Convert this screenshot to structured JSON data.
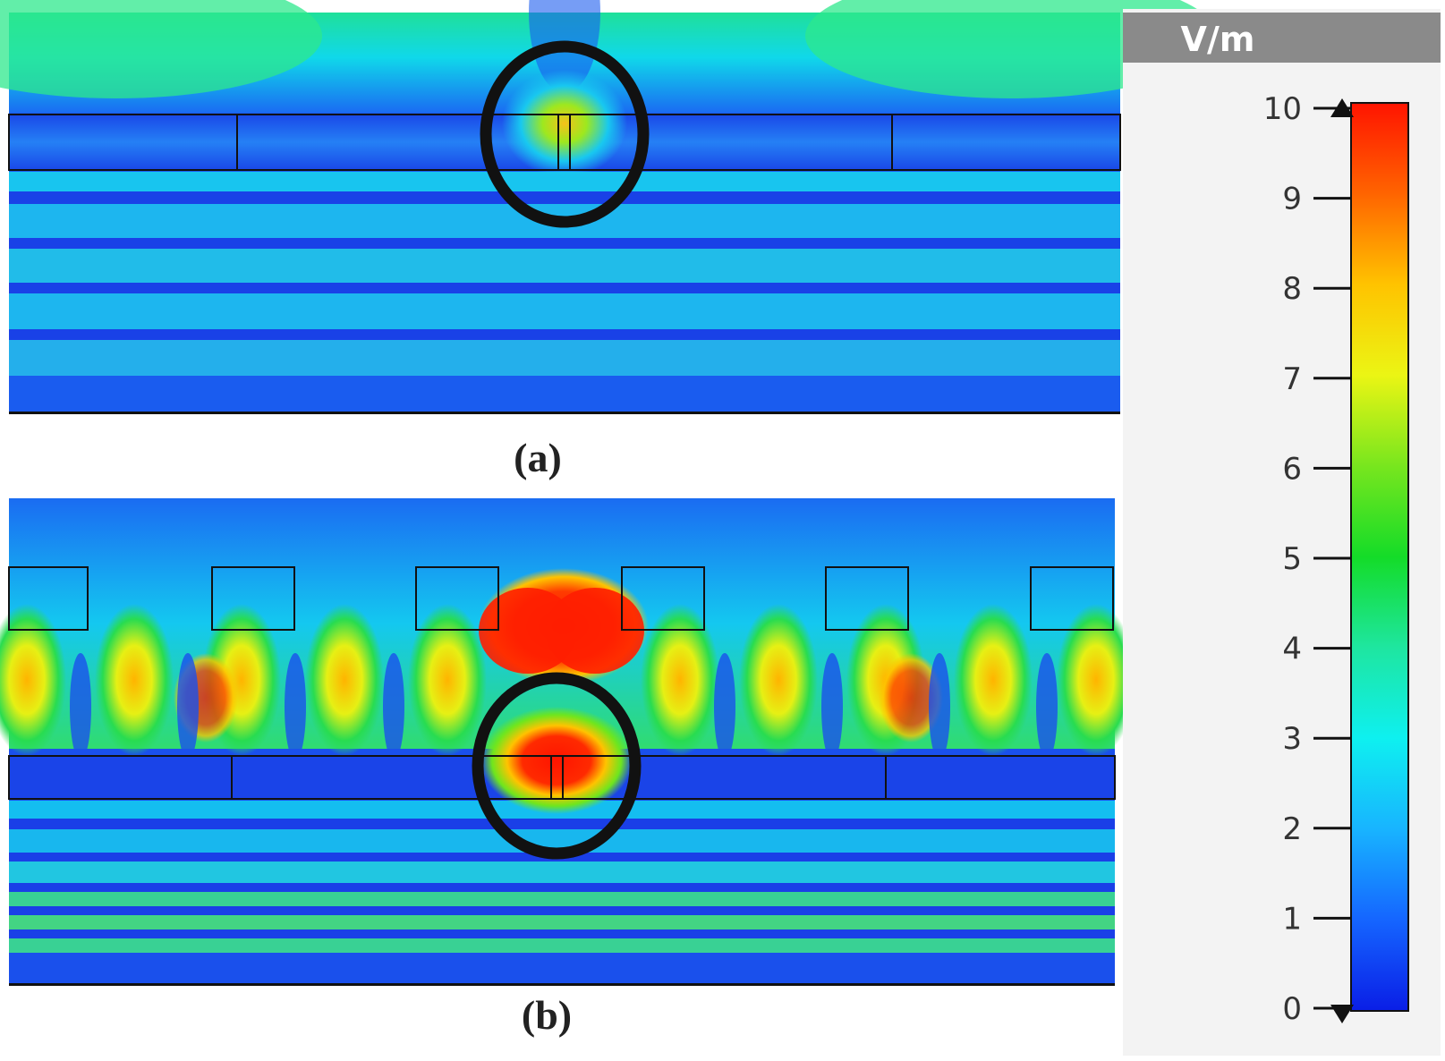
{
  "figure": {
    "panel_a": {
      "label": "(a)"
    },
    "panel_b": {
      "label": "(b)"
    }
  },
  "colorbar": {
    "unit": "V/m",
    "min": 0,
    "max": 10,
    "ticks": [
      "0",
      "1",
      "2",
      "3",
      "4",
      "5",
      "6",
      "7",
      "8",
      "9",
      "10"
    ],
    "colors": [
      "#0a1ee6",
      "#1565ff",
      "#18b4ff",
      "#0ef0f0",
      "#1ee6a0",
      "#14dc28",
      "#78e61e",
      "#ebf514",
      "#ffc300",
      "#ff6400",
      "#ff1400"
    ]
  }
}
